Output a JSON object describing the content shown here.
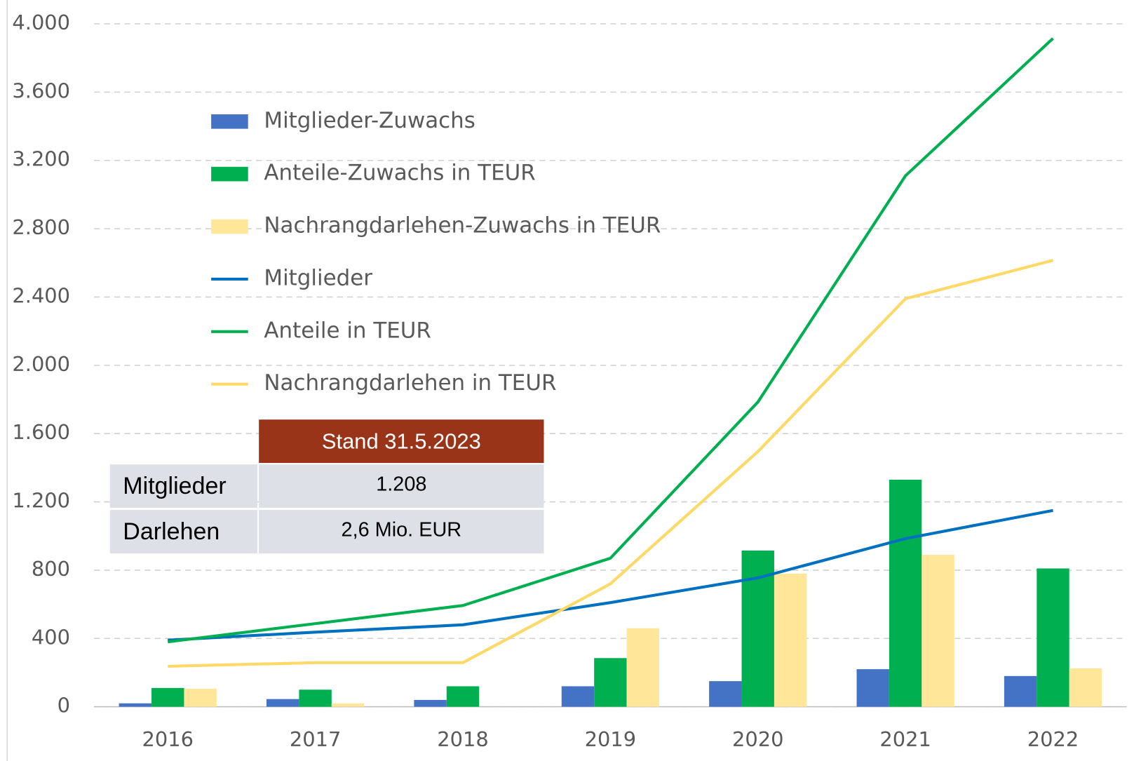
{
  "chart_data": {
    "type": "combo",
    "categories": [
      "2016",
      "2017",
      "2018",
      "2019",
      "2020",
      "2021",
      "2022"
    ],
    "series": [
      {
        "name": "Mitglieder-Zuwachs",
        "type": "bar",
        "color": "#4472c4",
        "values": [
          20,
          45,
          40,
          120,
          150,
          220,
          180
        ]
      },
      {
        "name": "Anteile-Zuwachs in TEUR",
        "type": "bar",
        "color": "#00b050",
        "values": [
          110,
          100,
          120,
          285,
          915,
          1330,
          810
        ]
      },
      {
        "name": "Nachrangdarlehen-Zuwachs in TEUR",
        "type": "bar",
        "color": "#ffe699",
        "values": [
          105,
          20,
          0,
          460,
          780,
          890,
          225
        ]
      },
      {
        "name": "Mitglieder",
        "type": "line",
        "color": "#0070c0",
        "values": [
          390,
          437,
          480,
          610,
          755,
          985,
          1150
        ]
      },
      {
        "name": "Anteile in TEUR",
        "type": "line",
        "color": "#00b050",
        "values": [
          380,
          487,
          593,
          870,
          1785,
          3110,
          3915
        ]
      },
      {
        "name": "Nachrangdarlehen in TEUR",
        "type": "line",
        "color": "#ffd966",
        "values": [
          237,
          258,
          258,
          720,
          1495,
          2390,
          2615
        ]
      }
    ],
    "ylim": [
      0,
      4000
    ],
    "yticks": [
      0,
      400,
      800,
      {
        "value": 1200,
        "label": "1.200"
      },
      {
        "value": 1600,
        "label": "1.600"
      },
      {
        "value": 2000,
        "label": "2.000"
      },
      {
        "value": 2400,
        "label": "2.400"
      },
      {
        "value": 2800,
        "label": "2.800"
      },
      {
        "value": 3200,
        "label": "3.200"
      },
      {
        "value": 3600,
        "label": "3.600"
      },
      {
        "value": 4000,
        "label": "4.000"
      }
    ],
    "grid": true,
    "legend": "upper left"
  },
  "table": {
    "header": "Stand 31.5.2023",
    "rows": [
      [
        "Mitglieder",
        "1.208"
      ],
      [
        "Darlehen",
        "2,6 Mio. EUR"
      ]
    ]
  }
}
